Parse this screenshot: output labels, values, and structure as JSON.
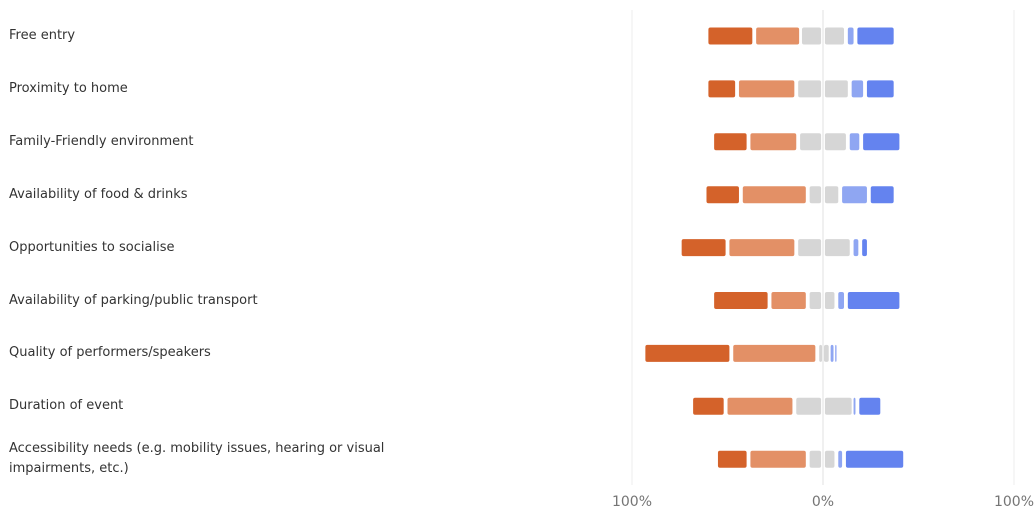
{
  "chart_data": {
    "type": "bar",
    "orientation": "horizontal",
    "stacking": "diverging",
    "categories": [
      "Free entry",
      "Proximity to home",
      "Family-Friendly environment",
      "Availability of food & drinks",
      "Opportunities to socialise",
      "Availability of parking/public transport",
      "Quality of performers/speakers",
      "Duration of event",
      "Accessibility needs (e.g. mobility issues, hearing or visual impairments, etc.)"
    ],
    "segment_colors": [
      "#d4622a",
      "#e39066",
      "#d6d6d6",
      "#d6d6d6",
      "#8fa6f2",
      "#6483ef"
    ],
    "segments_per_row": [
      [
        [
          -60,
          -37
        ],
        [
          -35,
          -12.5
        ],
        [
          -11,
          -1
        ],
        [
          1,
          11
        ],
        [
          13,
          16
        ],
        [
          18,
          37
        ]
      ],
      [
        [
          -60,
          -46
        ],
        [
          -44,
          -15
        ],
        [
          -13,
          -1
        ],
        [
          1,
          13
        ],
        [
          15,
          21
        ],
        [
          23,
          37
        ]
      ],
      [
        [
          -57,
          -40
        ],
        [
          -38,
          -14
        ],
        [
          -12,
          -1
        ],
        [
          1,
          12
        ],
        [
          14,
          19
        ],
        [
          21,
          40
        ]
      ],
      [
        [
          -61,
          -44
        ],
        [
          -42,
          -9
        ],
        [
          -7,
          -1
        ],
        [
          1,
          8
        ],
        [
          10,
          23
        ],
        [
          25,
          37
        ]
      ],
      [
        [
          -74,
          -51
        ],
        [
          -49,
          -15
        ],
        [
          -13,
          -1
        ],
        [
          1,
          14
        ],
        [
          16,
          18.5
        ],
        [
          20.5,
          23
        ]
      ],
      [
        [
          -57,
          -29
        ],
        [
          -27,
          -9
        ],
        [
          -7,
          -1
        ],
        [
          1,
          6
        ],
        [
          8,
          11
        ],
        [
          13,
          40
        ]
      ],
      [
        [
          -93,
          -49
        ],
        [
          -47,
          -4
        ],
        [
          -2,
          -0.5
        ],
        [
          0.5,
          3
        ],
        [
          4,
          5.5
        ],
        [
          6.5,
          7
        ]
      ],
      [
        [
          -68,
          -52
        ],
        [
          -50,
          -16
        ],
        [
          -14,
          -1
        ],
        [
          1,
          15
        ],
        [
          16,
          17
        ],
        [
          19,
          30
        ]
      ],
      [
        [
          -55,
          -40
        ],
        [
          -38,
          -9
        ],
        [
          -7,
          -1
        ],
        [
          1,
          6
        ],
        [
          8,
          10
        ],
        [
          12,
          42
        ]
      ]
    ],
    "x_ticks": [
      "100%",
      "0%",
      "100%"
    ],
    "xlim": [
      -100,
      100
    ],
    "grid": true,
    "legend": "none"
  }
}
